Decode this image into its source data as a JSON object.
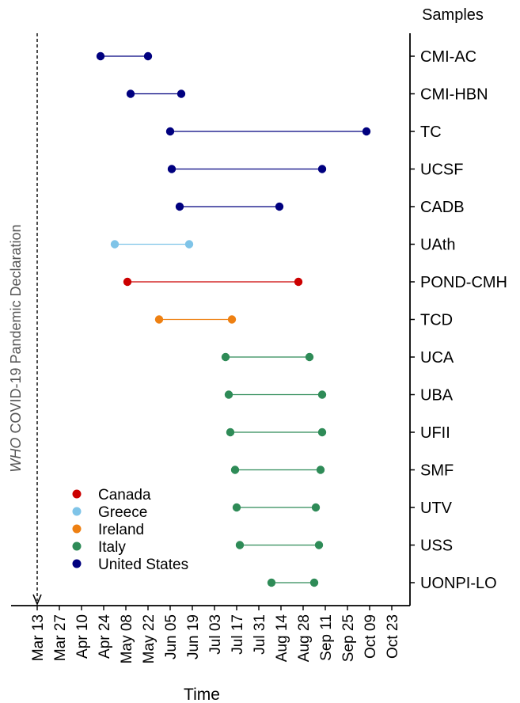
{
  "chart_data": {
    "type": "dumbbell",
    "xlabel": "Time",
    "ylabel_right": "Samples",
    "x_ticks": [
      "Mar 13",
      "Mar 27",
      "Apr 10",
      "Apr 24",
      "May 08",
      "May 22",
      "Jun 05",
      "Jun 19",
      "Jul 03",
      "Jul 17",
      "Jul 31",
      "Aug 14",
      "Aug 28",
      "Sep 11",
      "Sep 25",
      "Oct 09",
      "Oct 23"
    ],
    "reference_line": {
      "date": "Mar 13",
      "label_italic": "WHO",
      "label_rest": " COVID-19 Pandemic Declaration"
    },
    "colors": {
      "Canada": "#cc0000",
      "Greece": "#7fc4e8",
      "Ireland": "#ee8012",
      "Italy": "#2e8b57",
      "United States": "#00007f"
    },
    "legend": [
      "Canada",
      "Greece",
      "Ireland",
      "Italy",
      "United States"
    ],
    "legend_position": "bottom-left",
    "rows": [
      {
        "sample": "CMI-AC",
        "country": "United States",
        "start": "Apr 22",
        "end": "May 22"
      },
      {
        "sample": "CMI-HBN",
        "country": "United States",
        "start": "May 11",
        "end": "Jun 12"
      },
      {
        "sample": "TC",
        "country": "United States",
        "start": "Jun 05",
        "end": "Oct 07"
      },
      {
        "sample": "UCSF",
        "country": "United States",
        "start": "Jun 06",
        "end": "Sep 09"
      },
      {
        "sample": "CADB",
        "country": "United States",
        "start": "Jun 11",
        "end": "Aug 13"
      },
      {
        "sample": "UAth",
        "country": "Greece",
        "start": "May 01",
        "end": "Jun 17"
      },
      {
        "sample": "POND-CMH",
        "country": "Canada",
        "start": "May 09",
        "end": "Aug 25"
      },
      {
        "sample": "TCD",
        "country": "Ireland",
        "start": "May 29",
        "end": "Jul 14"
      },
      {
        "sample": "UCA",
        "country": "Italy",
        "start": "Jul 10",
        "end": "Sep 01"
      },
      {
        "sample": "UBA",
        "country": "Italy",
        "start": "Jul 12",
        "end": "Sep 09"
      },
      {
        "sample": "UFII",
        "country": "Italy",
        "start": "Jul 13",
        "end": "Sep 09"
      },
      {
        "sample": "SMF",
        "country": "Italy",
        "start": "Jul 16",
        "end": "Sep 08"
      },
      {
        "sample": "UTV",
        "country": "Italy",
        "start": "Jul 17",
        "end": "Sep 05"
      },
      {
        "sample": "USS",
        "country": "Italy",
        "start": "Jul 19",
        "end": "Sep 07"
      },
      {
        "sample": "UONPI-LO",
        "country": "Italy",
        "start": "Aug 08",
        "end": "Sep 04"
      }
    ]
  }
}
